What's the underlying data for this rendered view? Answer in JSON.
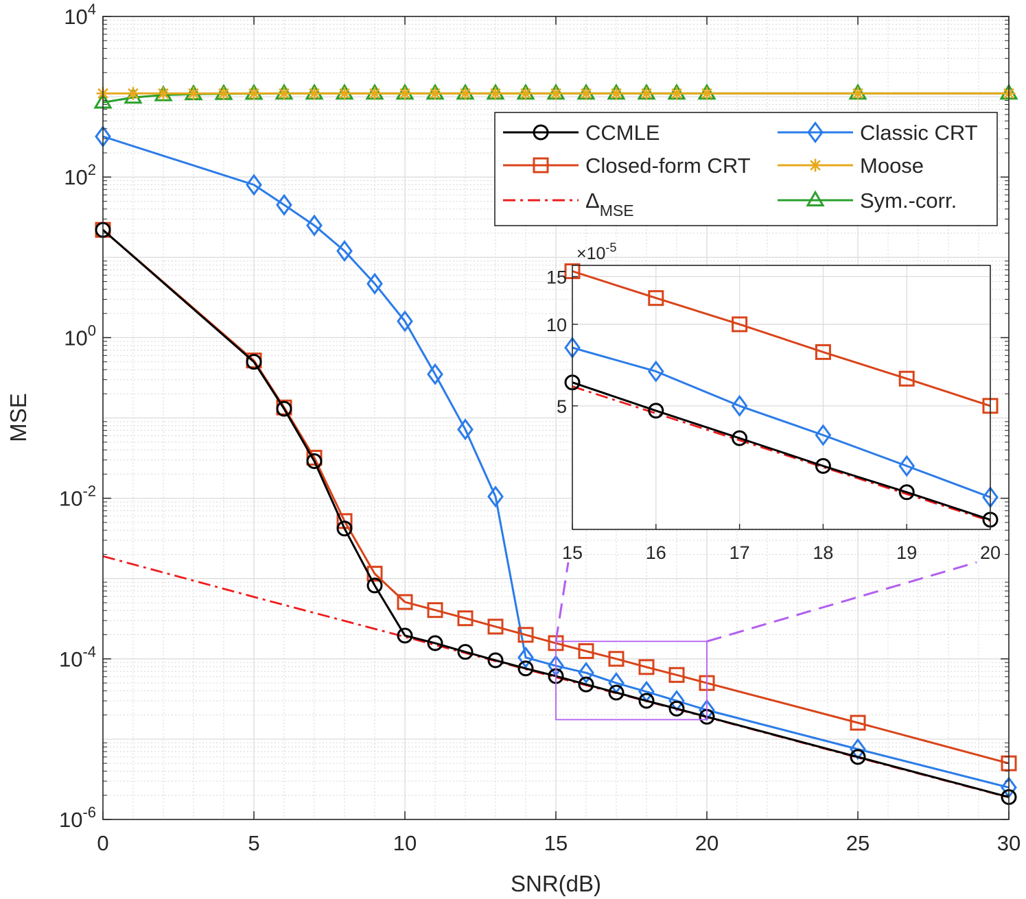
{
  "chart_data": {
    "type": "line",
    "title": "",
    "xlabel": "SNR(dB)",
    "ylabel": "MSE",
    "yscale": "log",
    "xlim": [
      0,
      30
    ],
    "ylim": [
      1e-06,
      10000.0
    ],
    "xticks": [
      0,
      5,
      10,
      15,
      20,
      25,
      30
    ],
    "xtick_labels": [
      "0",
      "5",
      "10",
      "15",
      "20",
      "25",
      "30"
    ],
    "yticks": [
      1e-06,
      0.0001,
      0.01,
      1,
      100.0,
      10000.0
    ],
    "ytick_labels": [
      {
        "base": "10",
        "exp": "-6"
      },
      {
        "base": "10",
        "exp": "-4"
      },
      {
        "base": "10",
        "exp": "-2"
      },
      {
        "base": "10",
        "exp": "0"
      },
      {
        "base": "10",
        "exp": "2"
      },
      {
        "base": "10",
        "exp": "4"
      }
    ],
    "grid": true,
    "legend_position": "top-right",
    "series": [
      {
        "name": "Sym.-corr.",
        "color": "#2ca02c",
        "marker": "triangle",
        "dash": "solid",
        "x": [
          0,
          1,
          2,
          3,
          4,
          5,
          6,
          7,
          8,
          9,
          10,
          11,
          12,
          13,
          14,
          15,
          16,
          17,
          18,
          19,
          20,
          25,
          30
        ],
        "y": [
          850,
          980,
          1050,
          1080,
          1090,
          1095,
          1100,
          1100,
          1100,
          1100,
          1100,
          1100,
          1100,
          1100,
          1100,
          1100,
          1100,
          1100,
          1100,
          1100,
          1100,
          1100,
          1100
        ]
      },
      {
        "name": "Moose",
        "color": "#e8a81c",
        "marker": "star",
        "dash": "solid",
        "x": [
          0,
          1,
          2,
          3,
          4,
          5,
          6,
          7,
          8,
          9,
          10,
          11,
          12,
          13,
          14,
          15,
          16,
          17,
          18,
          19,
          20,
          25,
          30
        ],
        "y": [
          1100,
          1100,
          1100,
          1100,
          1100,
          1100,
          1100,
          1100,
          1100,
          1100,
          1100,
          1100,
          1100,
          1100,
          1100,
          1100,
          1100,
          1100,
          1100,
          1100,
          1100,
          1100,
          1100
        ]
      },
      {
        "name": "Classic CRT",
        "color": "#2b7ce9",
        "marker": "diamond",
        "dash": "solid",
        "x": [
          0,
          5,
          6,
          7,
          8,
          9,
          10,
          11,
          12,
          13,
          14,
          15,
          16,
          17,
          18,
          19,
          20,
          25,
          30
        ],
        "y": [
          320,
          80,
          45,
          25,
          12,
          4.7,
          1.6,
          0.35,
          0.072,
          0.0105,
          0.000104,
          8.2e-05,
          6.7e-05,
          5e-05,
          3.9e-05,
          3e-05,
          2.3e-05,
          7.5e-06,
          2.5e-06
        ]
      },
      {
        "name": "Δ_MSE",
        "color": "#ee1c1c",
        "marker": "none",
        "dash": "dashdot",
        "x": [
          0,
          5,
          10,
          15,
          20,
          25,
          30
        ],
        "y": [
          0.0019,
          0.00059,
          0.000188,
          5.9e-05,
          1.88e-05,
          5.9e-06,
          1.88e-06
        ]
      },
      {
        "name": "Closed-form CRT",
        "color": "#d9441a",
        "marker": "square",
        "dash": "solid",
        "x": [
          0,
          5,
          6,
          7,
          8,
          9,
          10,
          11,
          12,
          13,
          14,
          15,
          16,
          17,
          18,
          19,
          20,
          25,
          30
        ],
        "y": [
          22,
          0.52,
          0.135,
          0.032,
          0.0052,
          0.00115,
          0.00051,
          0.000405,
          0.00032,
          0.000252,
          0.000199,
          0.000157,
          0.000125,
          0.0001,
          7.9e-05,
          6.3e-05,
          5e-05,
          1.6e-05,
          5e-06
        ]
      },
      {
        "name": "CCMLE",
        "color": "#000000",
        "marker": "circle",
        "dash": "solid",
        "x": [
          0,
          5,
          6,
          7,
          8,
          9,
          10,
          11,
          12,
          13,
          14,
          15,
          16,
          17,
          18,
          19,
          20,
          25,
          30
        ],
        "y": [
          22,
          0.5,
          0.13,
          0.029,
          0.0042,
          0.00082,
          0.000195,
          0.000157,
          0.000122,
          9.6e-05,
          7.6e-05,
          6.1e-05,
          4.8e-05,
          3.8e-05,
          3e-05,
          2.4e-05,
          1.9e-05,
          6e-06,
          1.9e-06
        ]
      }
    ],
    "legend": [
      {
        "label": "CCMLE",
        "series": "CCMLE"
      },
      {
        "label": "Classic CRT",
        "series": "Classic CRT"
      },
      {
        "label": "Closed-form CRT",
        "series": "Closed-form CRT"
      },
      {
        "label": "Moose",
        "series": "Moose"
      },
      {
        "label": "Δ",
        "sub": "MSE",
        "series": "Δ_MSE"
      },
      {
        "label": "Sym.-corr.",
        "series": "Sym.-corr."
      }
    ],
    "zoom_box": {
      "xlim": [
        15,
        20
      ],
      "ylim": [
        1.75e-05,
        0.000165
      ],
      "color": "#b25ff0"
    },
    "inset": {
      "xlim": [
        15,
        20
      ],
      "ylim": [
        1.75e-05,
        0.000165
      ],
      "xticks": [
        15,
        16,
        17,
        18,
        19,
        20
      ],
      "xtick_labels": [
        "15",
        "16",
        "17",
        "18",
        "19",
        "20"
      ],
      "yticks": [
        5e-05,
        0.0001,
        0.00015
      ],
      "ytick_labels": [
        "5",
        "10",
        "15"
      ],
      "exponent_label": {
        "prefix": "×10",
        "exp": "-5"
      }
    }
  }
}
